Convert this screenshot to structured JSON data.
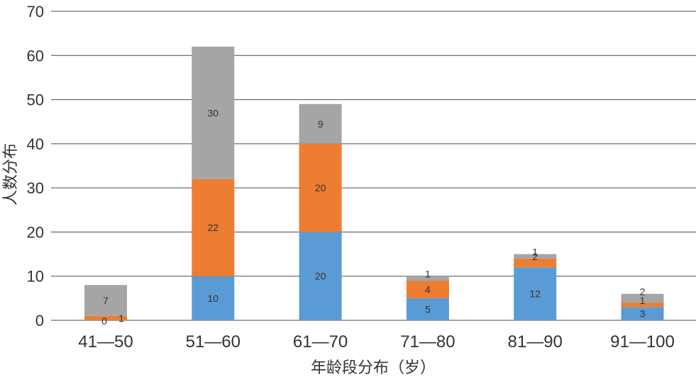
{
  "chart_data": {
    "type": "bar",
    "stacked": true,
    "title": "",
    "xlabel": "年龄段分布（岁）",
    "ylabel": "人数分布",
    "ylim": [
      0,
      70
    ],
    "yticks": [
      0,
      10,
      20,
      30,
      40,
      50,
      60,
      70
    ],
    "grid": true,
    "categories": [
      "41—50",
      "51—60",
      "61—70",
      "71—80",
      "81—90",
      "91—100"
    ],
    "series": [
      {
        "name": "series-blue",
        "color": "#5b9bd5",
        "values": [
          0,
          10,
          20,
          5,
          12,
          3
        ]
      },
      {
        "name": "series-orange",
        "color": "#ed7d31",
        "values": [
          1,
          22,
          20,
          4,
          2,
          1
        ]
      },
      {
        "name": "series-gray",
        "color": "#a5a5a5",
        "values": [
          7,
          30,
          9,
          1,
          1,
          2
        ]
      }
    ]
  }
}
